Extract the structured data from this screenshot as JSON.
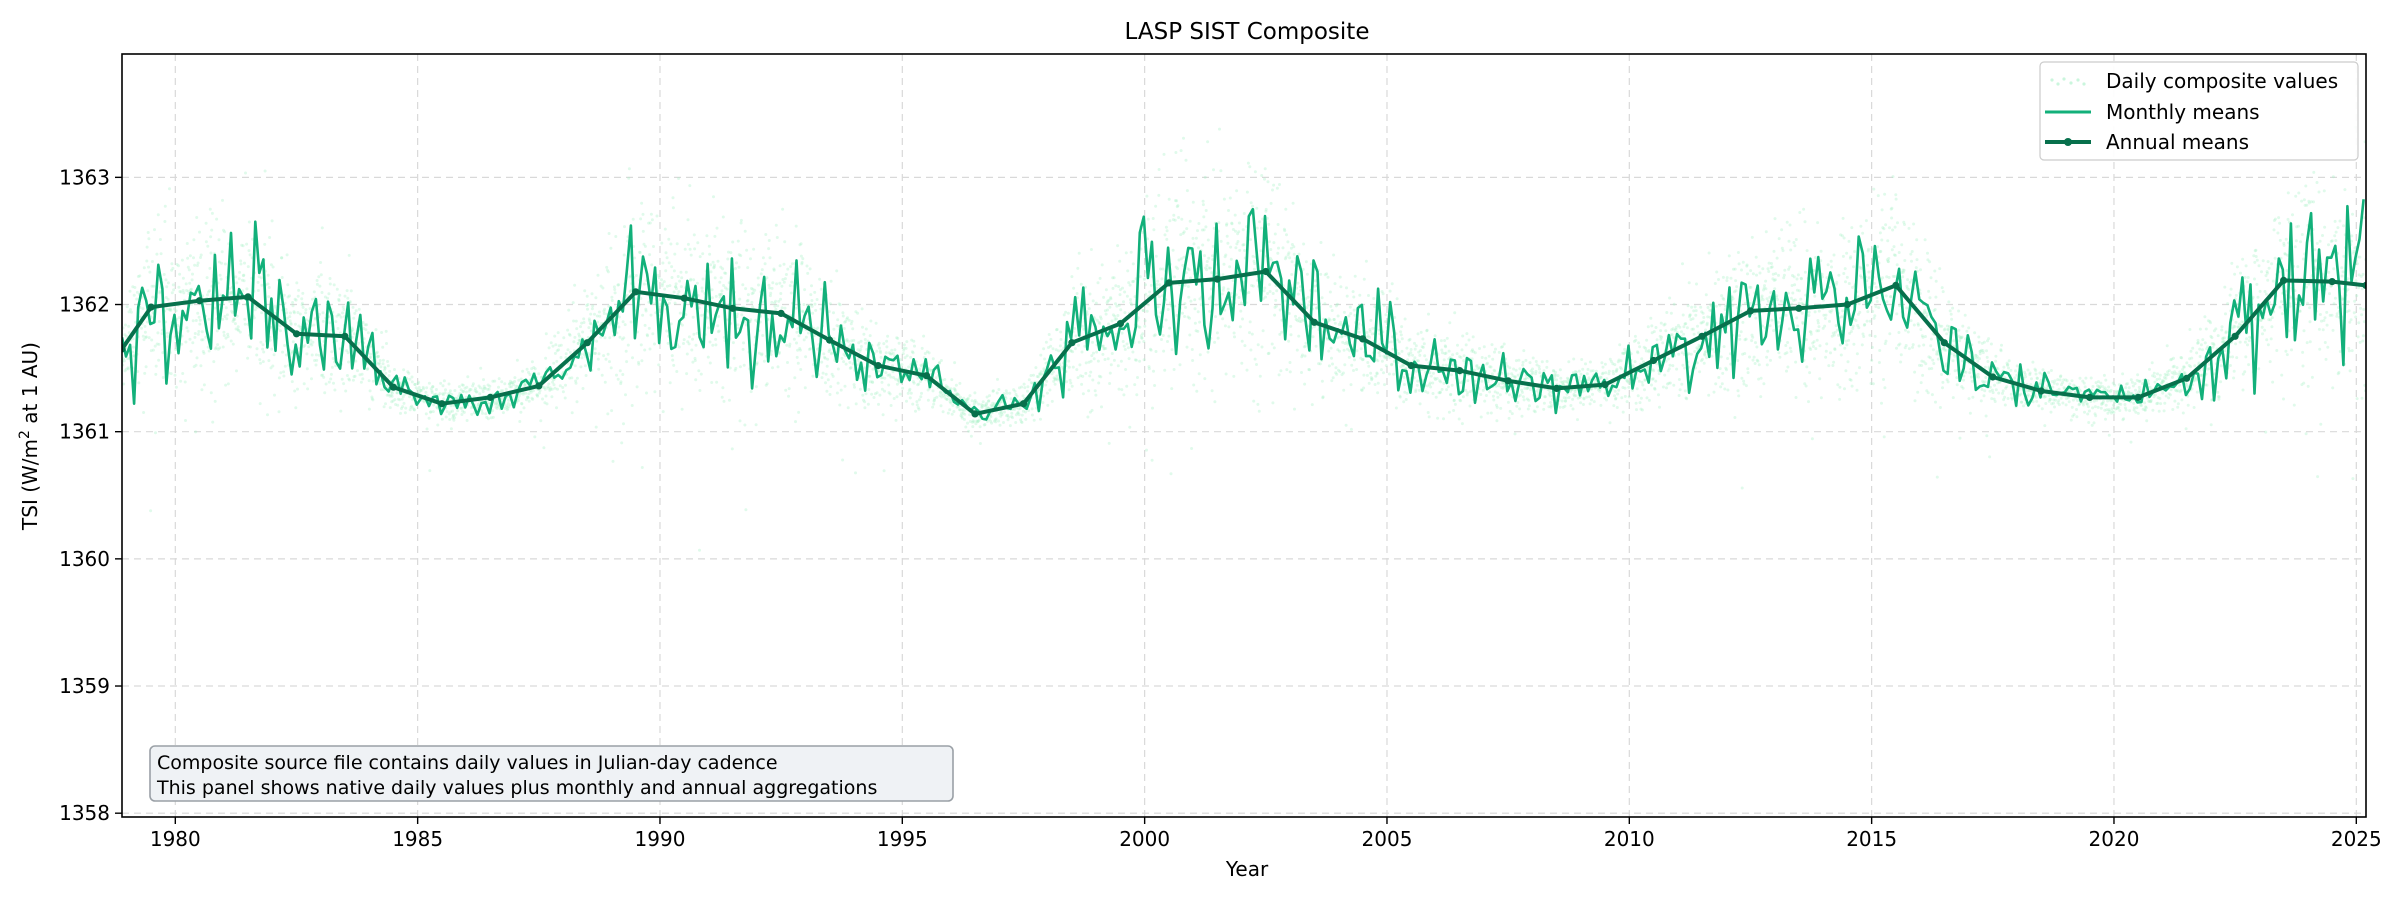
{
  "chart_data": {
    "type": "line",
    "title": "LASP SIST Composite",
    "xlabel": "Year",
    "ylabel_prefix": "TSI (W/m",
    "ylabel_sup": "2",
    "ylabel_suffix": " at 1 AU)",
    "xlim": [
      1978.9,
      2025.2
    ],
    "ylim": [
      1357.97,
      1363.97
    ],
    "x_ticks": [
      1980,
      1985,
      1990,
      1995,
      2000,
      2005,
      2010,
      2015,
      2020,
      2025
    ],
    "y_ticks": [
      1358,
      1359,
      1360,
      1361,
      1362,
      1363
    ],
    "grid": true,
    "legend_position": "top-right",
    "colors": {
      "daily": "#a6f0c6",
      "monthly": "#12b07a",
      "annual": "#07704c",
      "grid": "#d9d9d9",
      "annotation_bg": "#eff2f5",
      "annotation_border": "#9aa0a6"
    },
    "series": [
      {
        "name": "Daily composite values",
        "style": "scatter",
        "note": "dense daily scatter following monthly means with larger spread near solar maxima"
      },
      {
        "name": "Monthly means",
        "style": "line"
      },
      {
        "name": "Annual means",
        "style": "line-marker",
        "x": [
          1978.9,
          1979.5,
          1980.5,
          1981.5,
          1982.5,
          1983.5,
          1984.5,
          1985.5,
          1986.5,
          1987.5,
          1988.5,
          1989.5,
          1990.5,
          1991.5,
          1992.5,
          1993.5,
          1994.5,
          1995.5,
          1996.5,
          1997.5,
          1998.5,
          1999.5,
          2000.5,
          2001.5,
          2002.5,
          2003.5,
          2004.5,
          2005.5,
          2006.5,
          2007.5,
          2008.5,
          2009.5,
          2010.5,
          2011.5,
          2012.5,
          2013.5,
          2014.5,
          2015.5,
          2016.5,
          2017.5,
          2018.5,
          2019.5,
          2020.5,
          2021.5,
          2022.5,
          2023.5,
          2024.5,
          2025.2
        ],
        "y": [
          1361.65,
          1361.98,
          1362.03,
          1362.06,
          1361.77,
          1361.75,
          1361.35,
          1361.22,
          1361.27,
          1361.36,
          1361.7,
          1362.1,
          1362.05,
          1361.97,
          1361.93,
          1361.72,
          1361.52,
          1361.44,
          1361.14,
          1361.22,
          1361.7,
          1361.85,
          1362.17,
          1362.2,
          1362.26,
          1361.86,
          1361.73,
          1361.52,
          1361.48,
          1361.4,
          1361.34,
          1361.37,
          1361.56,
          1361.75,
          1361.95,
          1361.97,
          1362.0,
          1362.15,
          1361.7,
          1361.43,
          1361.32,
          1361.27,
          1361.27,
          1361.42,
          1361.75,
          1362.19,
          1362.18,
          1362.15
        ]
      }
    ],
    "annotation": [
      "Composite source file contains daily values in Julian-day cadence",
      "This panel shows native daily values plus monthly and annual aggregations"
    ]
  }
}
